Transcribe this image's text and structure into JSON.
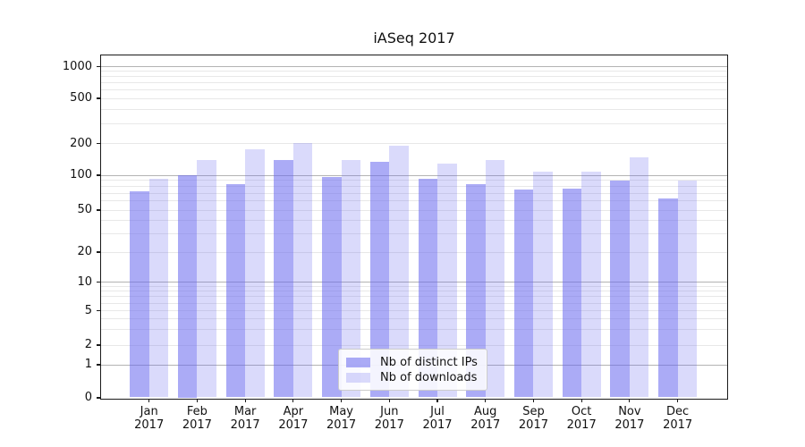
{
  "title": "iASeq 2017",
  "chart_data": {
    "type": "bar",
    "title": "iASeq 2017",
    "months": [
      "Jan",
      "Feb",
      "Mar",
      "Apr",
      "May",
      "Jun",
      "Jul",
      "Aug",
      "Sep",
      "Oct",
      "Nov",
      "Dec"
    ],
    "year": "2017",
    "categories": [
      "Jan 2017",
      "Feb 2017",
      "Mar 2017",
      "Apr 2017",
      "May 2017",
      "Jun 2017",
      "Jul 2017",
      "Aug 2017",
      "Sep 2017",
      "Oct 2017",
      "Nov 2017",
      "Dec 2017"
    ],
    "series": [
      {
        "name": "Nb of distinct IPs",
        "color": "rgba(102,102,238,0.55)",
        "values": [
          73,
          100,
          84,
          140,
          96,
          134,
          93,
          84,
          75,
          76,
          90,
          63
        ]
      },
      {
        "name": "Nb of downloads",
        "color": "rgba(102,102,238,0.24)",
        "values": [
          93,
          140,
          177,
          203,
          140,
          191,
          128,
          140,
          108,
          109,
          149,
          90
        ]
      }
    ],
    "y_axis": {
      "scale": "symlog",
      "ticks": [
        0,
        1,
        2,
        5,
        10,
        20,
        50,
        100,
        200,
        500,
        1000
      ],
      "range": [
        0,
        1000
      ],
      "major_gridline_values": [
        1,
        10,
        100,
        1000
      ],
      "minor_gridline_values": [
        2,
        3,
        4,
        5,
        6,
        7,
        8,
        9,
        20,
        30,
        40,
        50,
        60,
        70,
        80,
        90,
        200,
        300,
        400,
        500,
        600,
        700,
        800,
        900
      ]
    },
    "grid": {
      "major_color": "#b3b3b3",
      "minor_color": "#e8e8e8"
    },
    "legend_position": "lower center",
    "axis_color": "#1a1a1a"
  }
}
